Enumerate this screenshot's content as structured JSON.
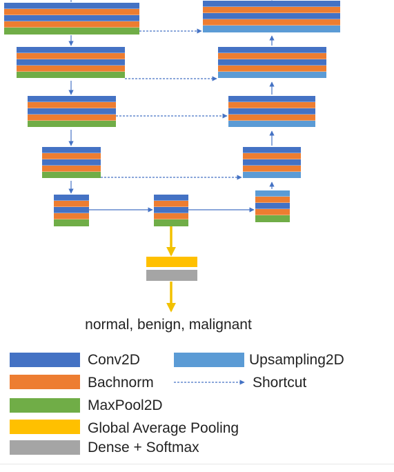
{
  "colors": {
    "conv": "#4472C4",
    "batchnorm": "#ED7D31",
    "maxpool": "#70AD47",
    "upsampling": "#5B9BD5",
    "gap": "#FFC000",
    "dense": "#A5A5A5",
    "arrow": "#4472C4",
    "output_arrow": "#F2C100",
    "text": "#222222"
  },
  "output_label": "normal, benign, malignant",
  "legend": {
    "conv2d": "Conv2D",
    "batchnorm": "Bachnorm",
    "maxpool2d": "MaxPool2D",
    "global_average_pooling": "Global Average Pooling",
    "dense_softmax": "Dense + Softmax",
    "upsampling2d": "Upsampling2D",
    "shortcut": "Shortcut"
  }
}
